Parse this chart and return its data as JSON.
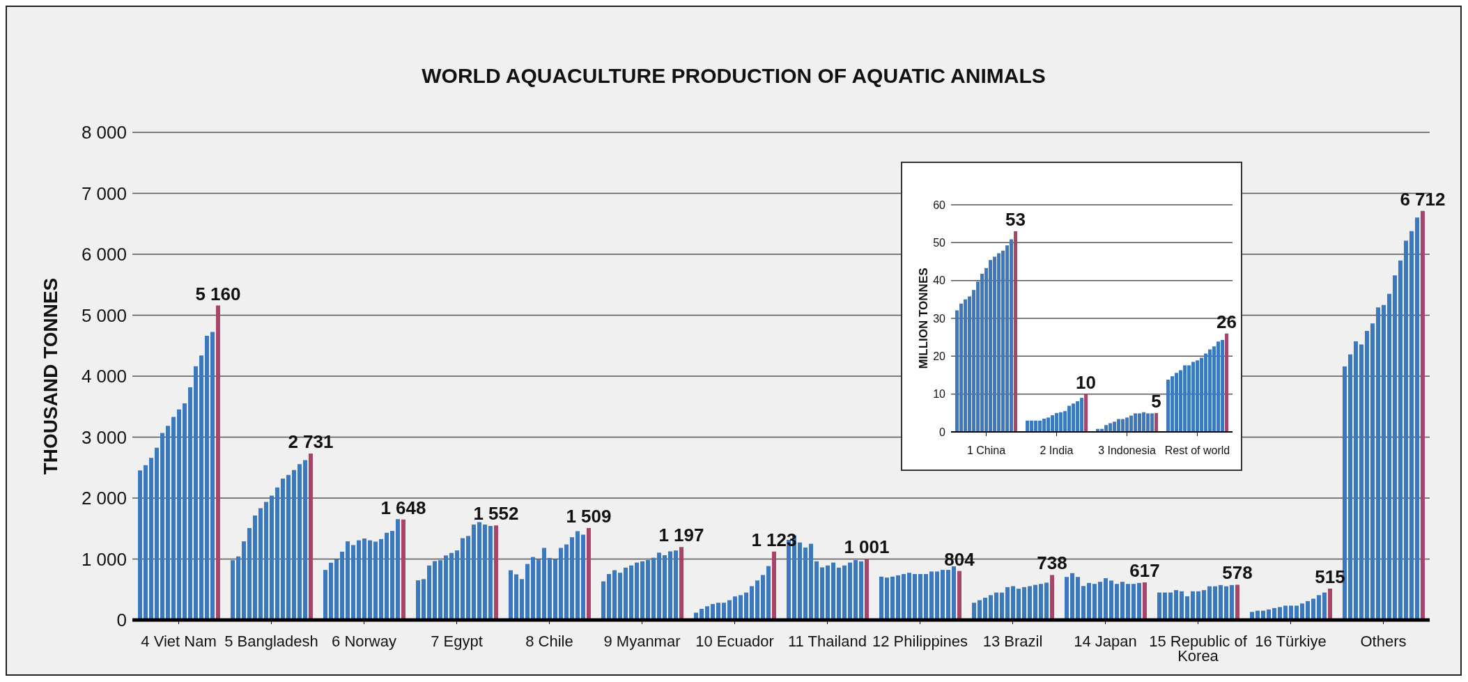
{
  "chart_data": [
    {
      "type": "bar",
      "title": "WORLD AQUACULTURE PRODUCTION OF AQUATIC ANIMALS",
      "ylabel": "THOUSAND TONNES",
      "categories": [
        "4 Viet Nam",
        "5 Bangladesh",
        "6 Norway",
        "7 Egypt",
        "8 Chile",
        "9 Myanmar",
        "10 Ecuador",
        "11 Thailand",
        "12 Philippines",
        "13 Brazil",
        "14 Japan",
        "15 Republic of Korea",
        "16 Türkiye",
        "Others"
      ],
      "ylim": [
        0,
        8000
      ],
      "yticks": [
        0,
        {
          "value": 1000,
          "label": "1 000"
        },
        {
          "value": 2000,
          "label": "2 000"
        },
        {
          "value": 3000,
          "label": "3 000"
        },
        {
          "value": 4000,
          "label": "4 000"
        },
        {
          "value": 5000,
          "label": "5 000"
        },
        {
          "value": 6000,
          "label": "6 000"
        },
        {
          "value": 7000,
          "label": "7 000"
        },
        {
          "value": 8000,
          "label": "8 000"
        }
      ],
      "grid": "y",
      "series": [
        {
          "color": "#3a78bf",
          "values": [
            2453,
            981,
            821,
            651,
            816,
            634,
            120,
            1314,
            712,
            283,
            706,
            451,
            133,
            4160
          ]
        },
        {
          "color": "#3a78bf",
          "values": [
            2541,
            1043,
            940,
            671,
            749,
            754,
            183,
            1387,
            696,
            325,
            769,
            451,
            153,
            4356
          ]
        },
        {
          "color": "#3a78bf",
          "values": [
            2660,
            1291,
            997,
            894,
            671,
            817,
            225,
            1272,
            712,
            366,
            706,
            451,
            153,
            4572
          ]
        },
        {
          "color": "#3a78bf",
          "values": [
            2825,
            1508,
            1121,
            966,
            919,
            775,
            262,
            1188,
            733,
            408,
            557,
            490,
            173,
            4521
          ]
        },
        {
          "color": "#3a78bf",
          "values": [
            3068,
            1715,
            1291,
            981,
            1033,
            859,
            283,
            1251,
            754,
            450,
            608,
            471,
            196,
            4742
          ]
        },
        {
          "color": "#3a78bf",
          "values": [
            3187,
            1834,
            1229,
            1059,
            992,
            895,
            283,
            963,
            775,
            450,
            592,
            388,
            212,
            4866
          ]
        },
        {
          "color": "#3a78bf",
          "values": [
            3331,
            1937,
            1307,
            1100,
            1183,
            942,
            325,
            864,
            754,
            539,
            627,
            471,
            235,
            5129
          ]
        },
        {
          "color": "#3a78bf",
          "values": [
            3455,
            2040,
            1338,
            1141,
            1018,
            963,
            387,
            895,
            754,
            555,
            686,
            471,
            235,
            5170
          ]
        },
        {
          "color": "#3a78bf",
          "values": [
            3554,
            2175,
            1307,
            1343,
            997,
            984,
            408,
            942,
            754,
            513,
            647,
            490,
            235,
            5351
          ]
        },
        {
          "color": "#3a78bf",
          "values": [
            3817,
            2319,
            1286,
            1379,
            1183,
            1021,
            450,
            859,
            796,
            539,
            592,
            553,
            271,
            5655
          ]
        },
        {
          "color": "#3a78bf",
          "values": [
            4163,
            2381,
            1327,
            1565,
            1240,
            1105,
            555,
            895,
            796,
            555,
            627,
            553,
            310,
            5897
          ]
        },
        {
          "color": "#3a78bf",
          "values": [
            4339,
            2459,
            1431,
            1606,
            1358,
            1063,
            649,
            942,
            822,
            576,
            592,
            573,
            349,
            6222
          ]
        },
        {
          "color": "#3a78bf",
          "values": [
            4664,
            2557,
            1462,
            1565,
            1457,
            1126,
            738,
            984,
            822,
            592,
            592,
            553,
            408,
            6381
          ]
        },
        {
          "color": "#3a78bf",
          "values": [
            4726,
            2624,
            1653,
            1544,
            1400,
            1141,
            885,
            963,
            880,
            613,
            608,
            573,
            451,
            6603
          ]
        },
        {
          "color": "#a8446a",
          "values": [
            5160,
            2731,
            1648,
            1552,
            1509,
            1197,
            1123,
            1001,
            804,
            738,
            617,
            578,
            515,
            6712
          ],
          "value_labels": [
            "5 160",
            "2 731",
            "1 648",
            "1 552",
            "1 509",
            "1 197",
            "1 123",
            "1 001",
            "804",
            "738",
            "617",
            "578",
            "515",
            "6 712"
          ]
        }
      ]
    },
    {
      "type": "bar",
      "ylabel": "MILLION TONNES",
      "categories": [
        "1 China",
        "2 India",
        "3 Indonesia",
        "Rest of world"
      ],
      "ylim": [
        0,
        60
      ],
      "yticks": [
        0,
        10,
        20,
        30,
        40,
        50,
        60
      ],
      "grid": "y",
      "series": [
        {
          "color": "#3a78bf",
          "values": [
            32.1,
            3.0,
            0.8,
            13.8
          ]
        },
        {
          "color": "#3a78bf",
          "values": [
            33.9,
            3.0,
            0.8,
            14.7
          ]
        },
        {
          "color": "#3a78bf",
          "values": [
            35.0,
            3.0,
            1.8,
            15.6
          ]
        },
        {
          "color": "#3a78bf",
          "values": [
            35.8,
            3.0,
            2.3,
            16.3
          ]
        },
        {
          "color": "#3a78bf",
          "values": [
            37.5,
            3.5,
            2.7,
            17.6
          ]
        },
        {
          "color": "#3a78bf",
          "values": [
            39.7,
            3.8,
            3.4,
            17.6
          ]
        },
        {
          "color": "#3a78bf",
          "values": [
            41.8,
            4.4,
            3.4,
            18.5
          ]
        },
        {
          "color": "#3a78bf",
          "values": [
            43.3,
            5.0,
            3.8,
            18.9
          ]
        },
        {
          "color": "#3a78bf",
          "values": [
            45.4,
            5.2,
            4.3,
            19.6
          ]
        },
        {
          "color": "#3a78bf",
          "values": [
            46.3,
            5.5,
            4.9,
            20.7
          ]
        },
        {
          "color": "#3a78bf",
          "values": [
            47.2,
            6.9,
            4.9,
            21.8
          ]
        },
        {
          "color": "#3a78bf",
          "values": [
            47.9,
            7.5,
            5.2,
            22.6
          ]
        },
        {
          "color": "#3a78bf",
          "values": [
            49.3,
            8.1,
            4.9,
            23.9
          ]
        },
        {
          "color": "#3a78bf",
          "values": [
            50.9,
            9.0,
            4.9,
            24.3
          ]
        },
        {
          "color": "#a8446a",
          "values": [
            53,
            10,
            5,
            26
          ],
          "value_labels": [
            "53",
            "10",
            "5",
            "26"
          ]
        }
      ]
    }
  ]
}
